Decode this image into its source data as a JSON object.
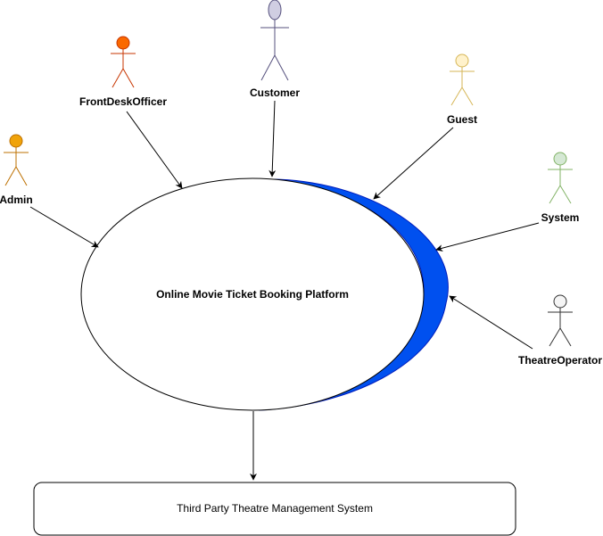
{
  "system": {
    "label": "Online Movie Ticket Booking Platform"
  },
  "external_system": {
    "label": "Third Party Theatre Management System"
  },
  "actors": {
    "customer": {
      "label": "Customer",
      "fill": "#d0cee2",
      "stroke": "#56517e"
    },
    "front_desk_officer": {
      "label": "FrontDeskOfficer",
      "fill": "#fa6800",
      "stroke": "#c73500"
    },
    "guest": {
      "label": "Guest",
      "fill": "#fff2cc",
      "stroke": "#d6b656"
    },
    "admin": {
      "label": "Admin",
      "fill": "#f0a30a",
      "stroke": "#bd7000"
    },
    "system": {
      "label": "System",
      "fill": "#d5e8d4",
      "stroke": "#82b366"
    },
    "theatre_operator": {
      "label": "TheatreOperator",
      "fill": "#f5f5f5",
      "stroke": "#333333"
    }
  },
  "colors": {
    "crescent": "#0050ef",
    "crescent_stroke": "#001dbc",
    "line": "#000000"
  }
}
